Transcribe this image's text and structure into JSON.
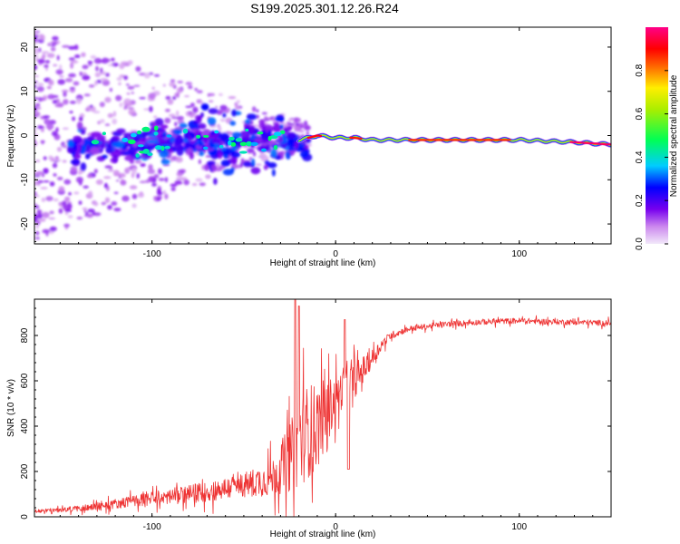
{
  "title": "S199.2025.301.12.26.R24",
  "chart_data": [
    {
      "type": "heatmap",
      "xlabel": "Height of straight line (km)",
      "ylabel": "Frequency (Hz)",
      "xlim": [
        -164,
        150
      ],
      "ylim": [
        -24.5,
        24.5
      ],
      "xticks": [
        -100,
        0,
        100
      ],
      "yticks": [
        -20,
        -10,
        0,
        10,
        20
      ],
      "colorbar": {
        "label": "Normalized spectral amplitude",
        "range": [
          0,
          1
        ],
        "ticks": [
          0.0,
          0.2,
          0.4,
          0.6,
          0.8
        ]
      },
      "ridge": {
        "description_x": [
          -150,
          -120,
          -90,
          -60,
          -40,
          -20,
          -10,
          0,
          10,
          20,
          50,
          100,
          130,
          148
        ],
        "frequency": [
          -3,
          -2,
          -1,
          -2,
          -1.5,
          -1,
          0,
          -0.5,
          -0.5,
          -1,
          -1,
          -1,
          -1.5,
          -2
        ],
        "amplitude": [
          0.15,
          0.25,
          0.3,
          0.3,
          0.35,
          0.45,
          0.8,
          0.7,
          0.8,
          0.75,
          0.75,
          0.7,
          0.85,
          1.0
        ]
      }
    },
    {
      "type": "line",
      "xlabel": "Height of straight line (km)",
      "ylabel": "SNR (10 * v/v)",
      "xlim": [
        -164,
        150
      ],
      "ylim": [
        0,
        960
      ],
      "xticks": [
        -100,
        0,
        100
      ],
      "yticks": [
        0,
        200,
        400,
        600,
        800
      ],
      "color": "#ee3333",
      "envelope": {
        "x": [
          -164,
          -150,
          -130,
          -110,
          -90,
          -70,
          -50,
          -35,
          -25,
          -20,
          -15,
          -10,
          -5,
          0,
          5,
          10,
          15,
          20,
          25,
          30,
          40,
          60,
          80,
          100,
          120,
          150
        ],
        "mean": [
          25,
          30,
          45,
          70,
          90,
          110,
          140,
          170,
          260,
          330,
          380,
          400,
          460,
          520,
          580,
          600,
          650,
          700,
          760,
          800,
          830,
          850,
          860,
          865,
          860,
          855
        ],
        "spread": [
          15,
          20,
          35,
          50,
          70,
          90,
          110,
          160,
          300,
          400,
          420,
          380,
          300,
          200,
          150,
          160,
          120,
          80,
          50,
          35,
          25,
          25,
          25,
          25,
          25,
          25
        ]
      }
    }
  ]
}
